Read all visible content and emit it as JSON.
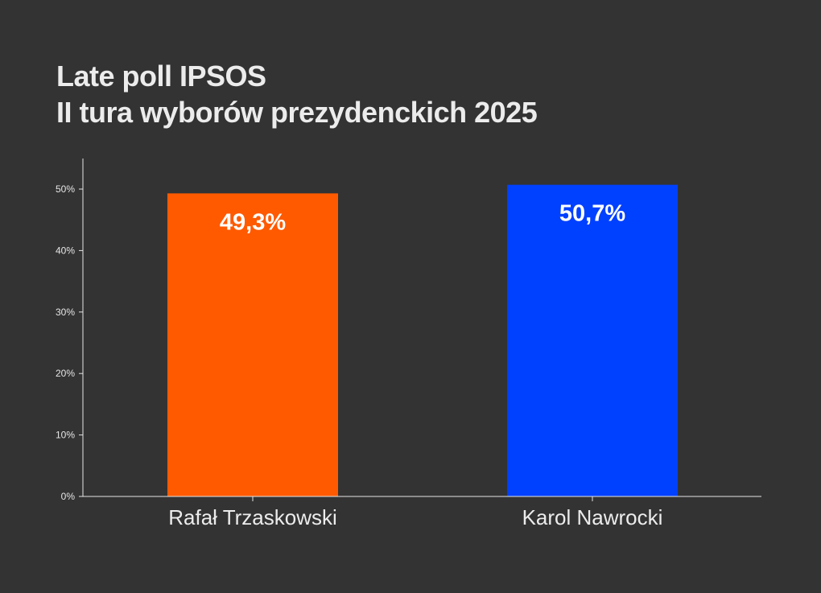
{
  "chart_data": {
    "type": "bar",
    "title": "Late poll IPSOS",
    "subtitle": "II tura wyborów prezydenckich 2025",
    "categories": [
      "Rafał Trzaskowski",
      "Karol Nawrocki"
    ],
    "values": [
      49.3,
      50.7
    ],
    "data_labels": [
      "49,3%",
      "50,7%"
    ],
    "colors": [
      "#ff5a00",
      "#0040ff"
    ],
    "y_ticks": [
      0,
      10,
      20,
      30,
      40,
      50
    ],
    "y_tick_labels": [
      "0%",
      "10%",
      "20%",
      "30%",
      "40%",
      "50%"
    ],
    "ylim": [
      0,
      55
    ],
    "xlabel": "",
    "ylabel": "",
    "grid": false,
    "legend": "none"
  },
  "theme": {
    "background": "#333333",
    "text": "#ececec",
    "axis": "#e6e6e6"
  }
}
